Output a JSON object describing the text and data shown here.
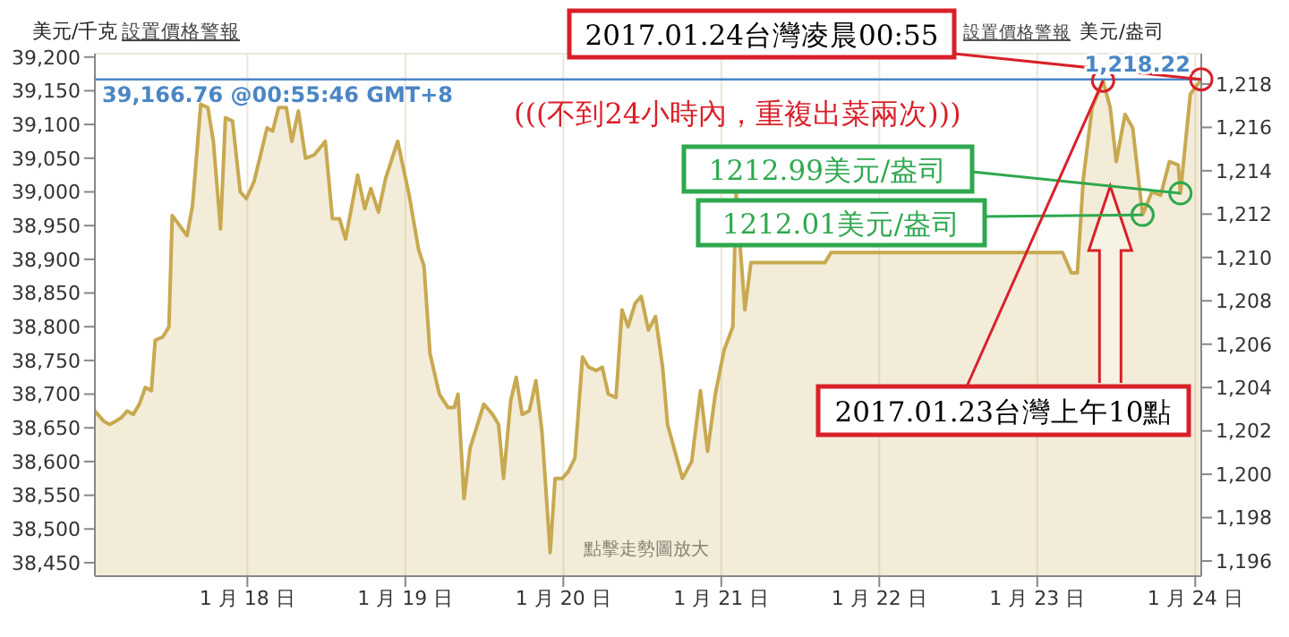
{
  "chart_data": {
    "type": "area",
    "ylabel": "美元/千克",
    "y2label": "美元/盎司",
    "x": [
      "2017-01-17T00:50",
      "2017-01-17T02:10",
      "2017-01-17T03:05",
      "2017-01-17T04:00",
      "2017-01-17T04:50",
      "2017-01-17T05:45",
      "2017-01-17T06:40",
      "2017-01-17T07:35",
      "2017-01-17T08:30",
      "2017-01-17T09:25",
      "2017-01-17T10:00",
      "2017-01-17T11:10",
      "2017-01-17T12:05",
      "2017-01-17T12:35",
      "2017-01-17T14:50",
      "2017-01-17T15:40",
      "2017-01-17T16:55",
      "2017-01-17T18:00",
      "2017-01-17T18:50",
      "2017-01-17T19:55",
      "2017-01-17T20:40",
      "2017-01-17T21:45",
      "2017-01-17T22:55",
      "2017-01-17T23:50",
      "2017-01-18T01:00",
      "2017-01-18T03:00",
      "2017-01-18T03:50",
      "2017-01-18T04:45",
      "2017-01-18T05:55",
      "2017-01-18T06:45",
      "2017-01-18T07:45",
      "2017-01-18T08:50",
      "2017-01-18T10:10",
      "2017-01-18T11:50",
      "2017-01-18T12:55",
      "2017-01-18T14:00",
      "2017-01-18T14:55",
      "2017-01-18T16:45",
      "2017-01-18T17:50",
      "2017-01-18T18:45",
      "2017-01-18T19:55",
      "2017-01-18T21:00",
      "2017-01-18T22:50",
      "2017-01-19T00:35",
      "2017-01-19T02:00",
      "2017-01-19T02:50",
      "2017-01-19T03:45",
      "2017-01-19T05:10",
      "2017-01-19T06:30",
      "2017-01-19T07:25",
      "2017-01-19T08:00",
      "2017-01-19T08:55",
      "2017-01-19T09:50",
      "2017-01-19T11:55",
      "2017-01-19T13:15",
      "2017-01-19T14:10",
      "2017-01-19T14:55",
      "2017-01-19T16:00",
      "2017-01-19T16:50",
      "2017-01-19T17:45",
      "2017-01-19T18:50",
      "2017-01-19T19:50",
      "2017-01-19T20:45",
      "2017-01-19T22:00",
      "2017-01-19T22:45",
      "2017-01-19T23:50",
      "2017-01-20T00:45",
      "2017-01-20T01:45",
      "2017-01-20T02:55",
      "2017-01-20T03:50",
      "2017-01-20T05:00",
      "2017-01-20T05:55",
      "2017-01-20T06:50",
      "2017-01-20T08:00",
      "2017-01-20T08:55",
      "2017-01-20T09:50",
      "2017-01-20T10:55",
      "2017-01-20T11:50",
      "2017-01-20T12:55",
      "2017-01-20T14:00",
      "2017-01-20T15:05",
      "2017-01-20T15:50",
      "2017-01-20T18:05",
      "2017-01-20T19:30",
      "2017-01-20T20:50",
      "2017-01-20T21:55",
      "2017-01-20T23:05",
      "2017-01-21T00:25",
      "2017-01-21T01:45",
      "2017-01-21T02:15",
      "2017-01-21T03:35",
      "2017-01-21T04:30",
      "2017-01-21T15:45",
      "2017-01-21T16:40",
      "2017-01-23T03:50",
      "2017-01-23T05:10",
      "2017-01-23T06:05",
      "2017-01-23T07:00",
      "2017-01-23T08:20",
      "2017-01-23T10:00",
      "2017-01-23T11:05",
      "2017-01-23T12:00",
      "2017-01-23T13:20",
      "2017-01-23T14:30",
      "2017-01-23T16:00",
      "2017-01-23T17:25",
      "2017-01-23T18:45",
      "2017-01-23T20:05",
      "2017-01-23T21:25",
      "2017-01-23T21:45",
      "2017-01-23T23:15",
      "2017-01-24T00:55"
    ],
    "series": [
      {
        "color": "#c8a951",
        "values": [
          38675,
          38660,
          38655,
          38660,
          38665,
          38675,
          38670,
          38685,
          38710,
          38705,
          38780,
          38785,
          38800,
          38965,
          38935,
          38980,
          39130,
          39125,
          39075,
          38945,
          39110,
          39105,
          39000,
          38990,
          39015,
          39095,
          39090,
          39125,
          39125,
          39075,
          39120,
          39050,
          39055,
          39075,
          38960,
          38960,
          38930,
          39025,
          38975,
          39005,
          38970,
          39020,
          39075,
          38995,
          38915,
          38890,
          38760,
          38700,
          38680,
          38680,
          38700,
          38545,
          38620,
          38685,
          38670,
          38655,
          38575,
          38690,
          38725,
          38670,
          38675,
          38720,
          38645,
          38465,
          38575,
          38575,
          38585,
          38605,
          38755,
          38740,
          38735,
          38740,
          38700,
          38695,
          38825,
          38800,
          38835,
          38845,
          38795,
          38815,
          38740,
          38655,
          38575,
          38600,
          38705,
          38615,
          38700,
          38765,
          38800,
          39000,
          38825,
          38895,
          38895,
          38910,
          38910,
          38880,
          38880,
          39020,
          39125,
          39165,
          39125,
          39045,
          39115,
          39095,
          38966,
          39000,
          38995,
          39045,
          39040,
          38998,
          39145,
          39167
        ]
      }
    ],
    "xlim": [
      "2017-01-17T00:50",
      "2017-01-24T00:55"
    ],
    "xticks": [
      {
        "value": "2017-01-18",
        "label": "1 月 18 日"
      },
      {
        "value": "2017-01-19",
        "label": "1 月 19 日"
      },
      {
        "value": "2017-01-20",
        "label": "1 月 20 日"
      },
      {
        "value": "2017-01-21",
        "label": "1 月 21 日"
      },
      {
        "value": "2017-01-22",
        "label": "1 月 22 日"
      },
      {
        "value": "2017-01-23",
        "label": "1 月 23 日"
      },
      {
        "value": "2017-01-24",
        "label": "1 月 24 日"
      }
    ],
    "ylim": [
      38430,
      39205
    ],
    "yticks": [
      {
        "value": 38450,
        "label": "38,450"
      },
      {
        "value": 38500,
        "label": "38,500"
      },
      {
        "value": 38550,
        "label": "38,550"
      },
      {
        "value": 38600,
        "label": "38,600"
      },
      {
        "value": 38650,
        "label": "38,650"
      },
      {
        "value": 38700,
        "label": "38,700"
      },
      {
        "value": 38750,
        "label": "38,750"
      },
      {
        "value": 38800,
        "label": "38,800"
      },
      {
        "value": 38850,
        "label": "38,850"
      },
      {
        "value": 38900,
        "label": "38,900"
      },
      {
        "value": 38950,
        "label": "38,950"
      },
      {
        "value": 39000,
        "label": "39,000"
      },
      {
        "value": 39050,
        "label": "39,050"
      },
      {
        "value": 39100,
        "label": "39,100"
      },
      {
        "value": 39150,
        "label": "39,150"
      },
      {
        "value": 39200,
        "label": "39,200"
      }
    ],
    "y2lim": [
      1195.3,
      1219.4
    ],
    "y2ticks": [
      {
        "value": 1196,
        "label": "1,196"
      },
      {
        "value": 1198,
        "label": "1,198"
      },
      {
        "value": 1200,
        "label": "1,200"
      },
      {
        "value": 1202,
        "label": "1,202"
      },
      {
        "value": 1204,
        "label": "1,204"
      },
      {
        "value": 1206,
        "label": "1,206"
      },
      {
        "value": 1208,
        "label": "1,208"
      },
      {
        "value": 1210,
        "label": "1,210"
      },
      {
        "value": 1212,
        "label": "1,212"
      },
      {
        "value": 1214,
        "label": "1,214"
      },
      {
        "value": 1216,
        "label": "1,216"
      },
      {
        "value": 1218,
        "label": "1,218"
      }
    ],
    "grid": true,
    "ref_lines": [
      {
        "axis": "y",
        "value": 39166.76,
        "label": "39,166.76 @00:55:46 GMT+8",
        "color": "#4a86c5"
      }
    ],
    "annotations": [
      "設置價格警報",
      "設置價格警報",
      "點擊走勢圖放大",
      "(((不到24小時內，重複出菜兩次)))",
      {
        "text": "2017.01.24台灣凌晨00:55",
        "x": "2017-01-24T00:55",
        "y": 39167
      },
      {
        "text": "1212.99美元/盎司",
        "x": "2017-01-23T21:45",
        "y": 38998
      },
      {
        "text": "1212.01美元/盎司",
        "x": "2017-01-23T16:00",
        "y": 38966
      },
      {
        "text": "2017.01.23台灣上午10點",
        "x": "2017-01-23T10:00",
        "y": 39165
      },
      "1,218.22"
    ]
  }
}
